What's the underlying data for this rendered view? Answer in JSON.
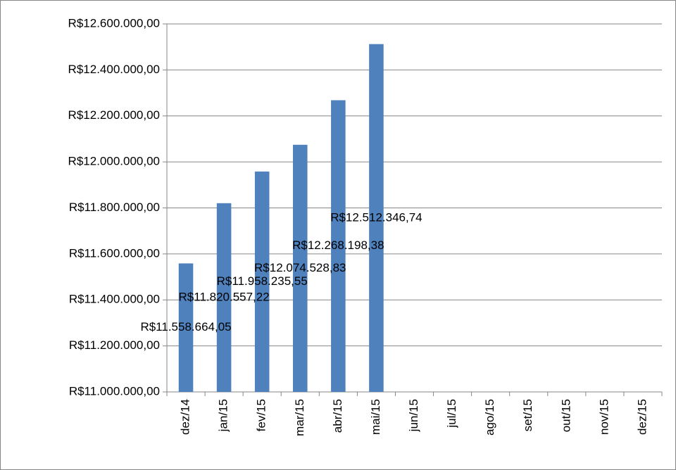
{
  "chart_data": {
    "type": "bar",
    "categories": [
      "dez/14",
      "jan/15",
      "fev/15",
      "mar/15",
      "abr/15",
      "mai/15",
      "jun/15",
      "jul/15",
      "ago/15",
      "set/15",
      "out/15",
      "nov/15",
      "dez/15"
    ],
    "values": [
      11558664.05,
      11820557.22,
      11958235.55,
      12074528.83,
      12268198.38,
      12512346.74,
      null,
      null,
      null,
      null,
      null,
      null,
      null
    ],
    "value_labels": [
      "R$11.558.664,05",
      "R$11.820.557,22",
      "R$11.958.235,55",
      "R$12.074.528,83",
      "R$12.268.198,38",
      "R$12.512.346,74",
      null,
      null,
      null,
      null,
      null,
      null,
      null
    ],
    "color": "#4f81bd",
    "ylim": [
      11000000,
      12600000
    ],
    "yticks": [
      {
        "value": 11000000,
        "label": "R$11.000.000,00"
      },
      {
        "value": 11200000,
        "label": "R$11.200.000,00"
      },
      {
        "value": 11400000,
        "label": "R$11.400.000,00"
      },
      {
        "value": 11600000,
        "label": "R$11.600.000,00"
      },
      {
        "value": 11800000,
        "label": "R$11.800.000,00"
      },
      {
        "value": 12000000,
        "label": "R$12.000.000,00"
      },
      {
        "value": 12200000,
        "label": "R$12.200.000,00"
      },
      {
        "value": 12400000,
        "label": "R$12.400.000,00"
      },
      {
        "value": 12600000,
        "label": "R$12.600.000,00"
      }
    ],
    "grid": true
  }
}
